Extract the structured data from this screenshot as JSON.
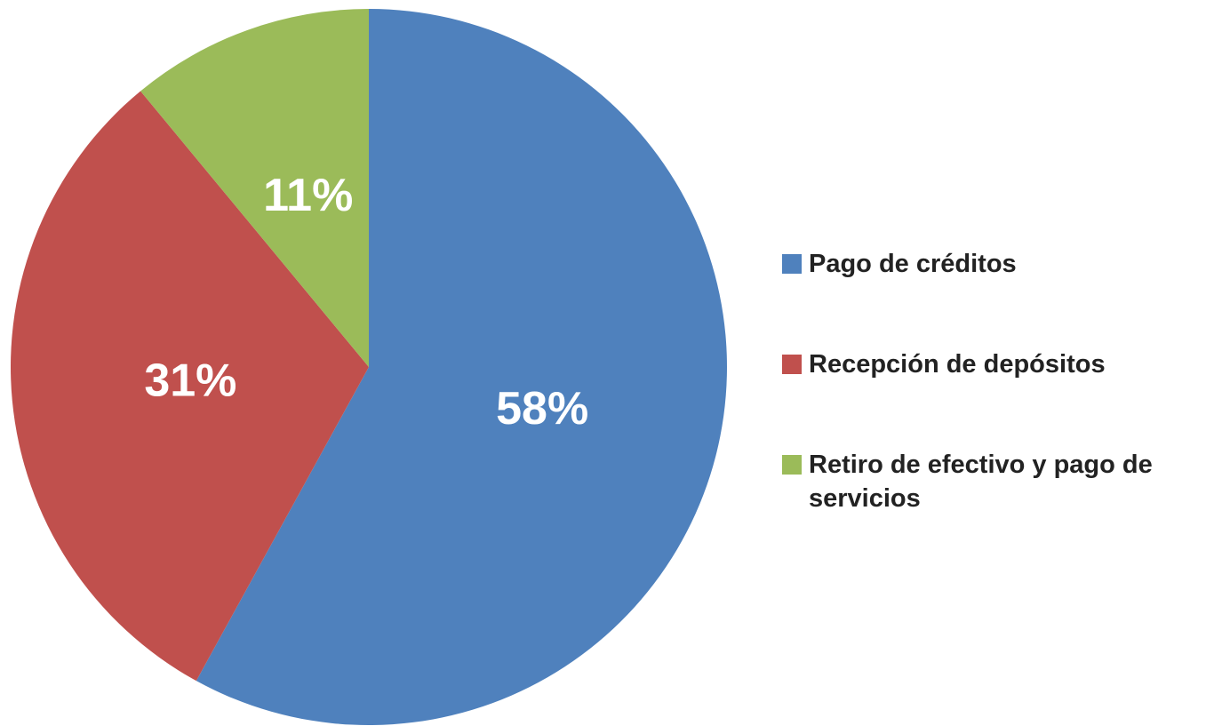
{
  "chart_data": {
    "type": "pie",
    "categories": [
      "Pago de créditos",
      "Recepción de depósitos",
      "Retiro de efectivo y pago de servicios"
    ],
    "values": [
      58,
      31,
      11
    ],
    "value_labels": [
      "58%",
      "31%",
      "11%"
    ],
    "colors": [
      "#4f81bd",
      "#c0504d",
      "#9bbb59"
    ],
    "legend": "right"
  }
}
